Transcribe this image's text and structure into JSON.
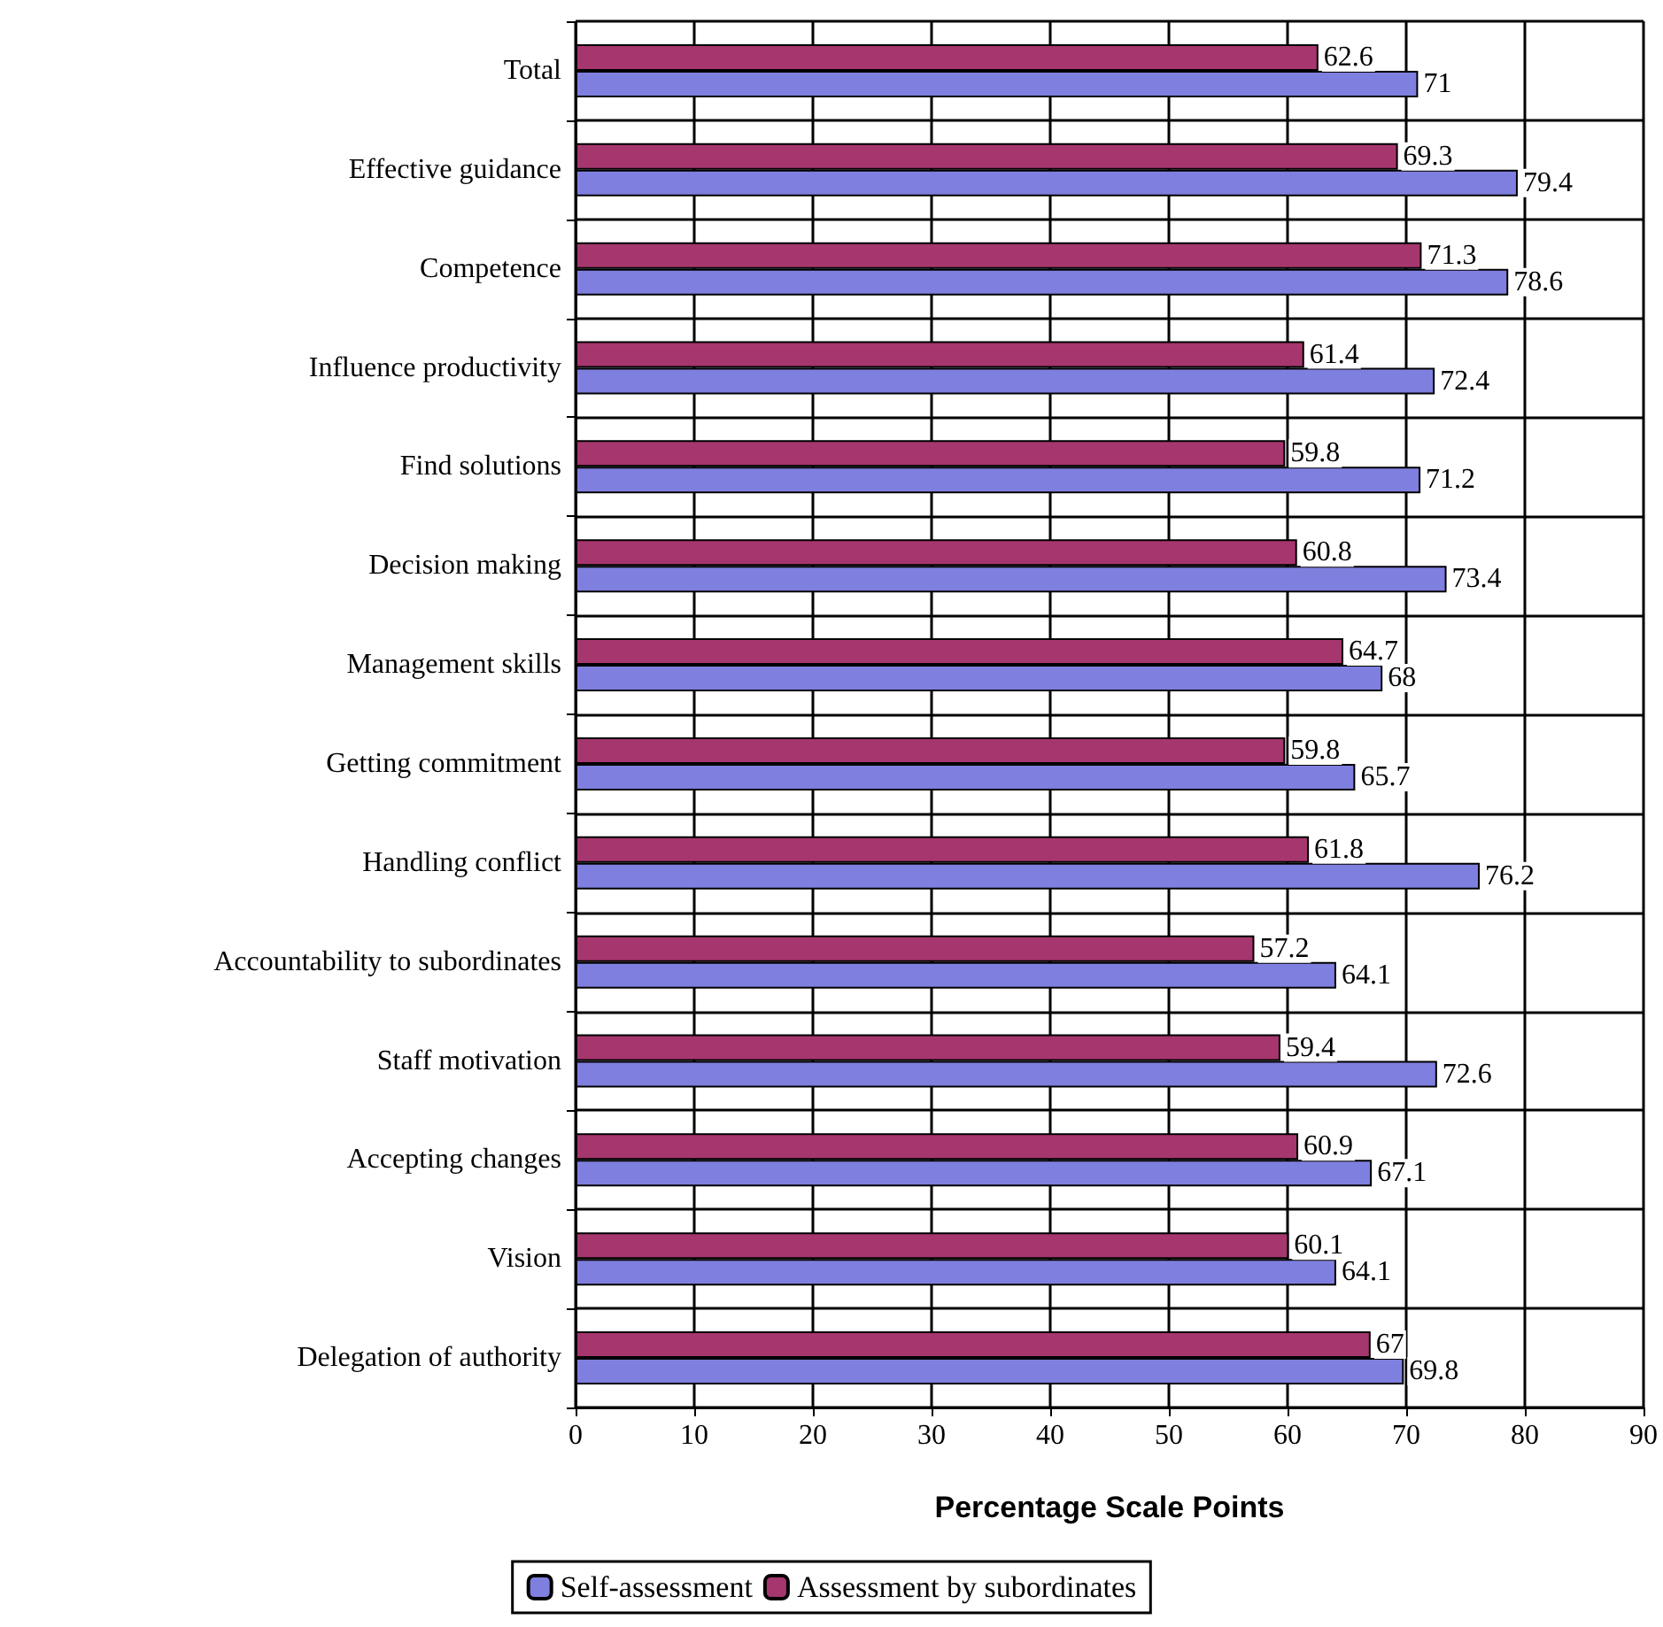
{
  "chart_data": {
    "type": "bar",
    "orientation": "horizontal",
    "xlabel": "Percentage Scale Points",
    "categories": [
      "Total",
      "Effective guidance",
      "Competence",
      "Influence productivity",
      "Find solutions",
      "Decision making",
      "Management skills",
      "Getting commitment",
      "Handling conflict",
      "Accountability to subordinates",
      "Staff motivation",
      "Accepting changes",
      "Vision",
      "Delegation of authority"
    ],
    "series": [
      {
        "name": "Self-assessment",
        "color": "#7f7fdf",
        "values": [
          71,
          79.4,
          78.6,
          72.4,
          71.2,
          73.4,
          68,
          65.7,
          76.2,
          64.1,
          72.6,
          67.1,
          64.1,
          69.8
        ]
      },
      {
        "name": "Assessment by subordinates",
        "color": "#a6366e",
        "values": [
          62.6,
          69.3,
          71.3,
          61.4,
          59.8,
          60.8,
          64.7,
          59.8,
          61.8,
          57.2,
          59.4,
          60.9,
          60.1,
          67
        ]
      }
    ],
    "xlim": [
      0,
      90
    ],
    "xticks": [
      0,
      10,
      20,
      30,
      40,
      50,
      60,
      70,
      80,
      90
    ],
    "grid": true,
    "data_labels": true,
    "legend": "bottom"
  }
}
